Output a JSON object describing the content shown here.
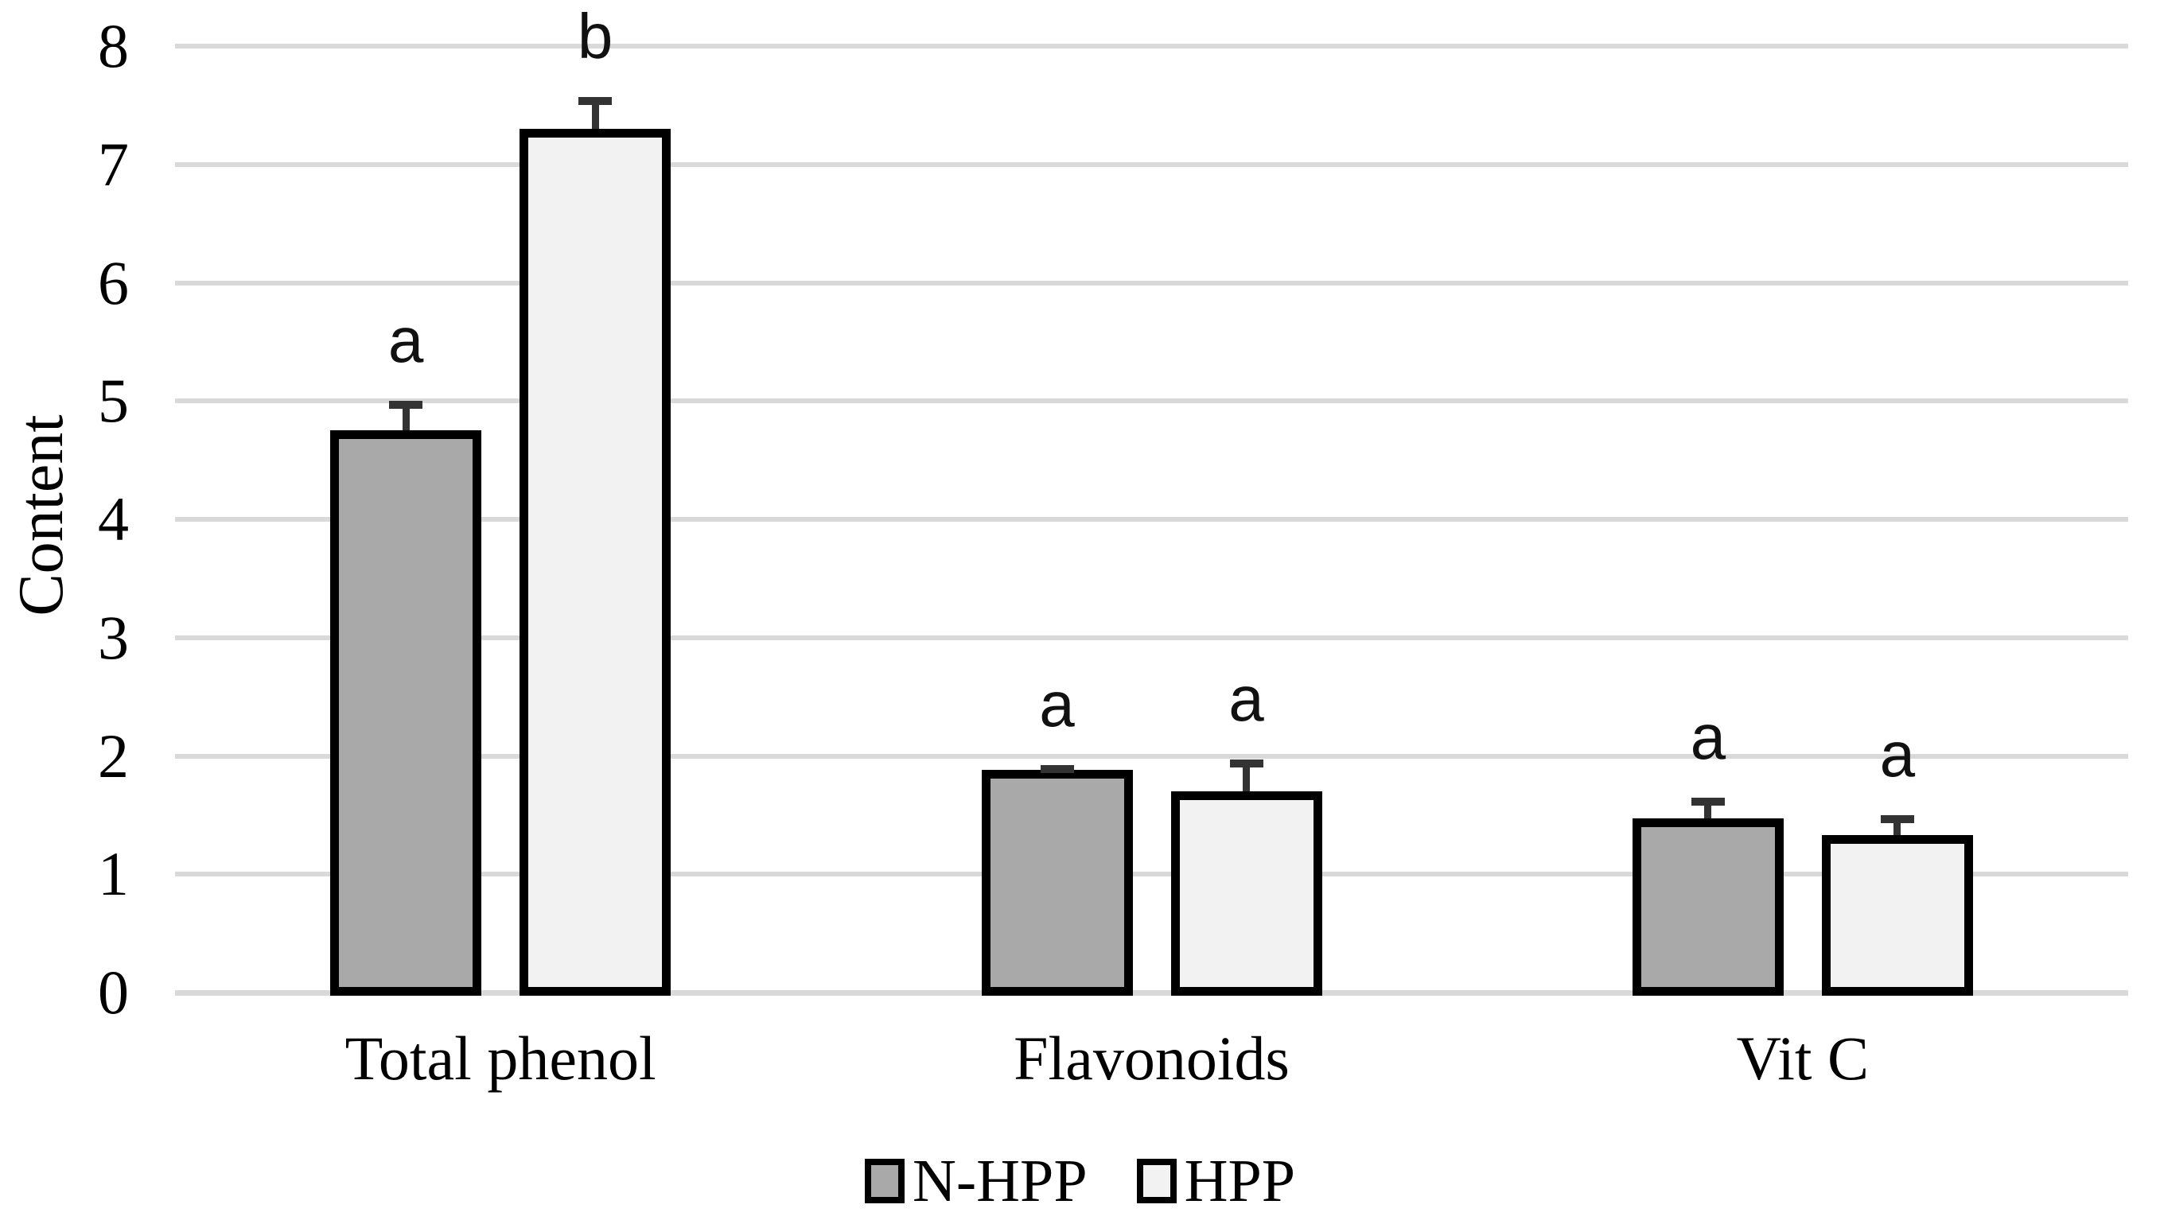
{
  "chart_data": {
    "type": "bar",
    "title": "",
    "ylabel": "Content",
    "xlabel": "",
    "categories": [
      "Total phenol",
      "Flavonoids",
      "Vit C"
    ],
    "series": [
      {
        "name": "N-HPP",
        "color": "#a9a9a9",
        "values": [
          4.75,
          1.88,
          1.47
        ],
        "error_upper": [
          0.25,
          0.04,
          0.18
        ],
        "sig_letters": [
          "a",
          "a",
          "a"
        ]
      },
      {
        "name": "HPP",
        "color": "#f2f2f2",
        "values": [
          7.3,
          1.7,
          1.33
        ],
        "error_upper": [
          0.27,
          0.27,
          0.17
        ],
        "sig_letters": [
          "b",
          "a",
          "a"
        ]
      }
    ],
    "ylim": [
      0,
      8
    ],
    "yticks": [
      0,
      1,
      2,
      3,
      4,
      5,
      6,
      7,
      8
    ],
    "grid": true,
    "legend_position": "bottom",
    "colors": {
      "bar_border": "#000000",
      "gridline": "#d9d9d9",
      "error_bar": "#333333",
      "text": "#000000",
      "background": "#ffffff"
    }
  }
}
